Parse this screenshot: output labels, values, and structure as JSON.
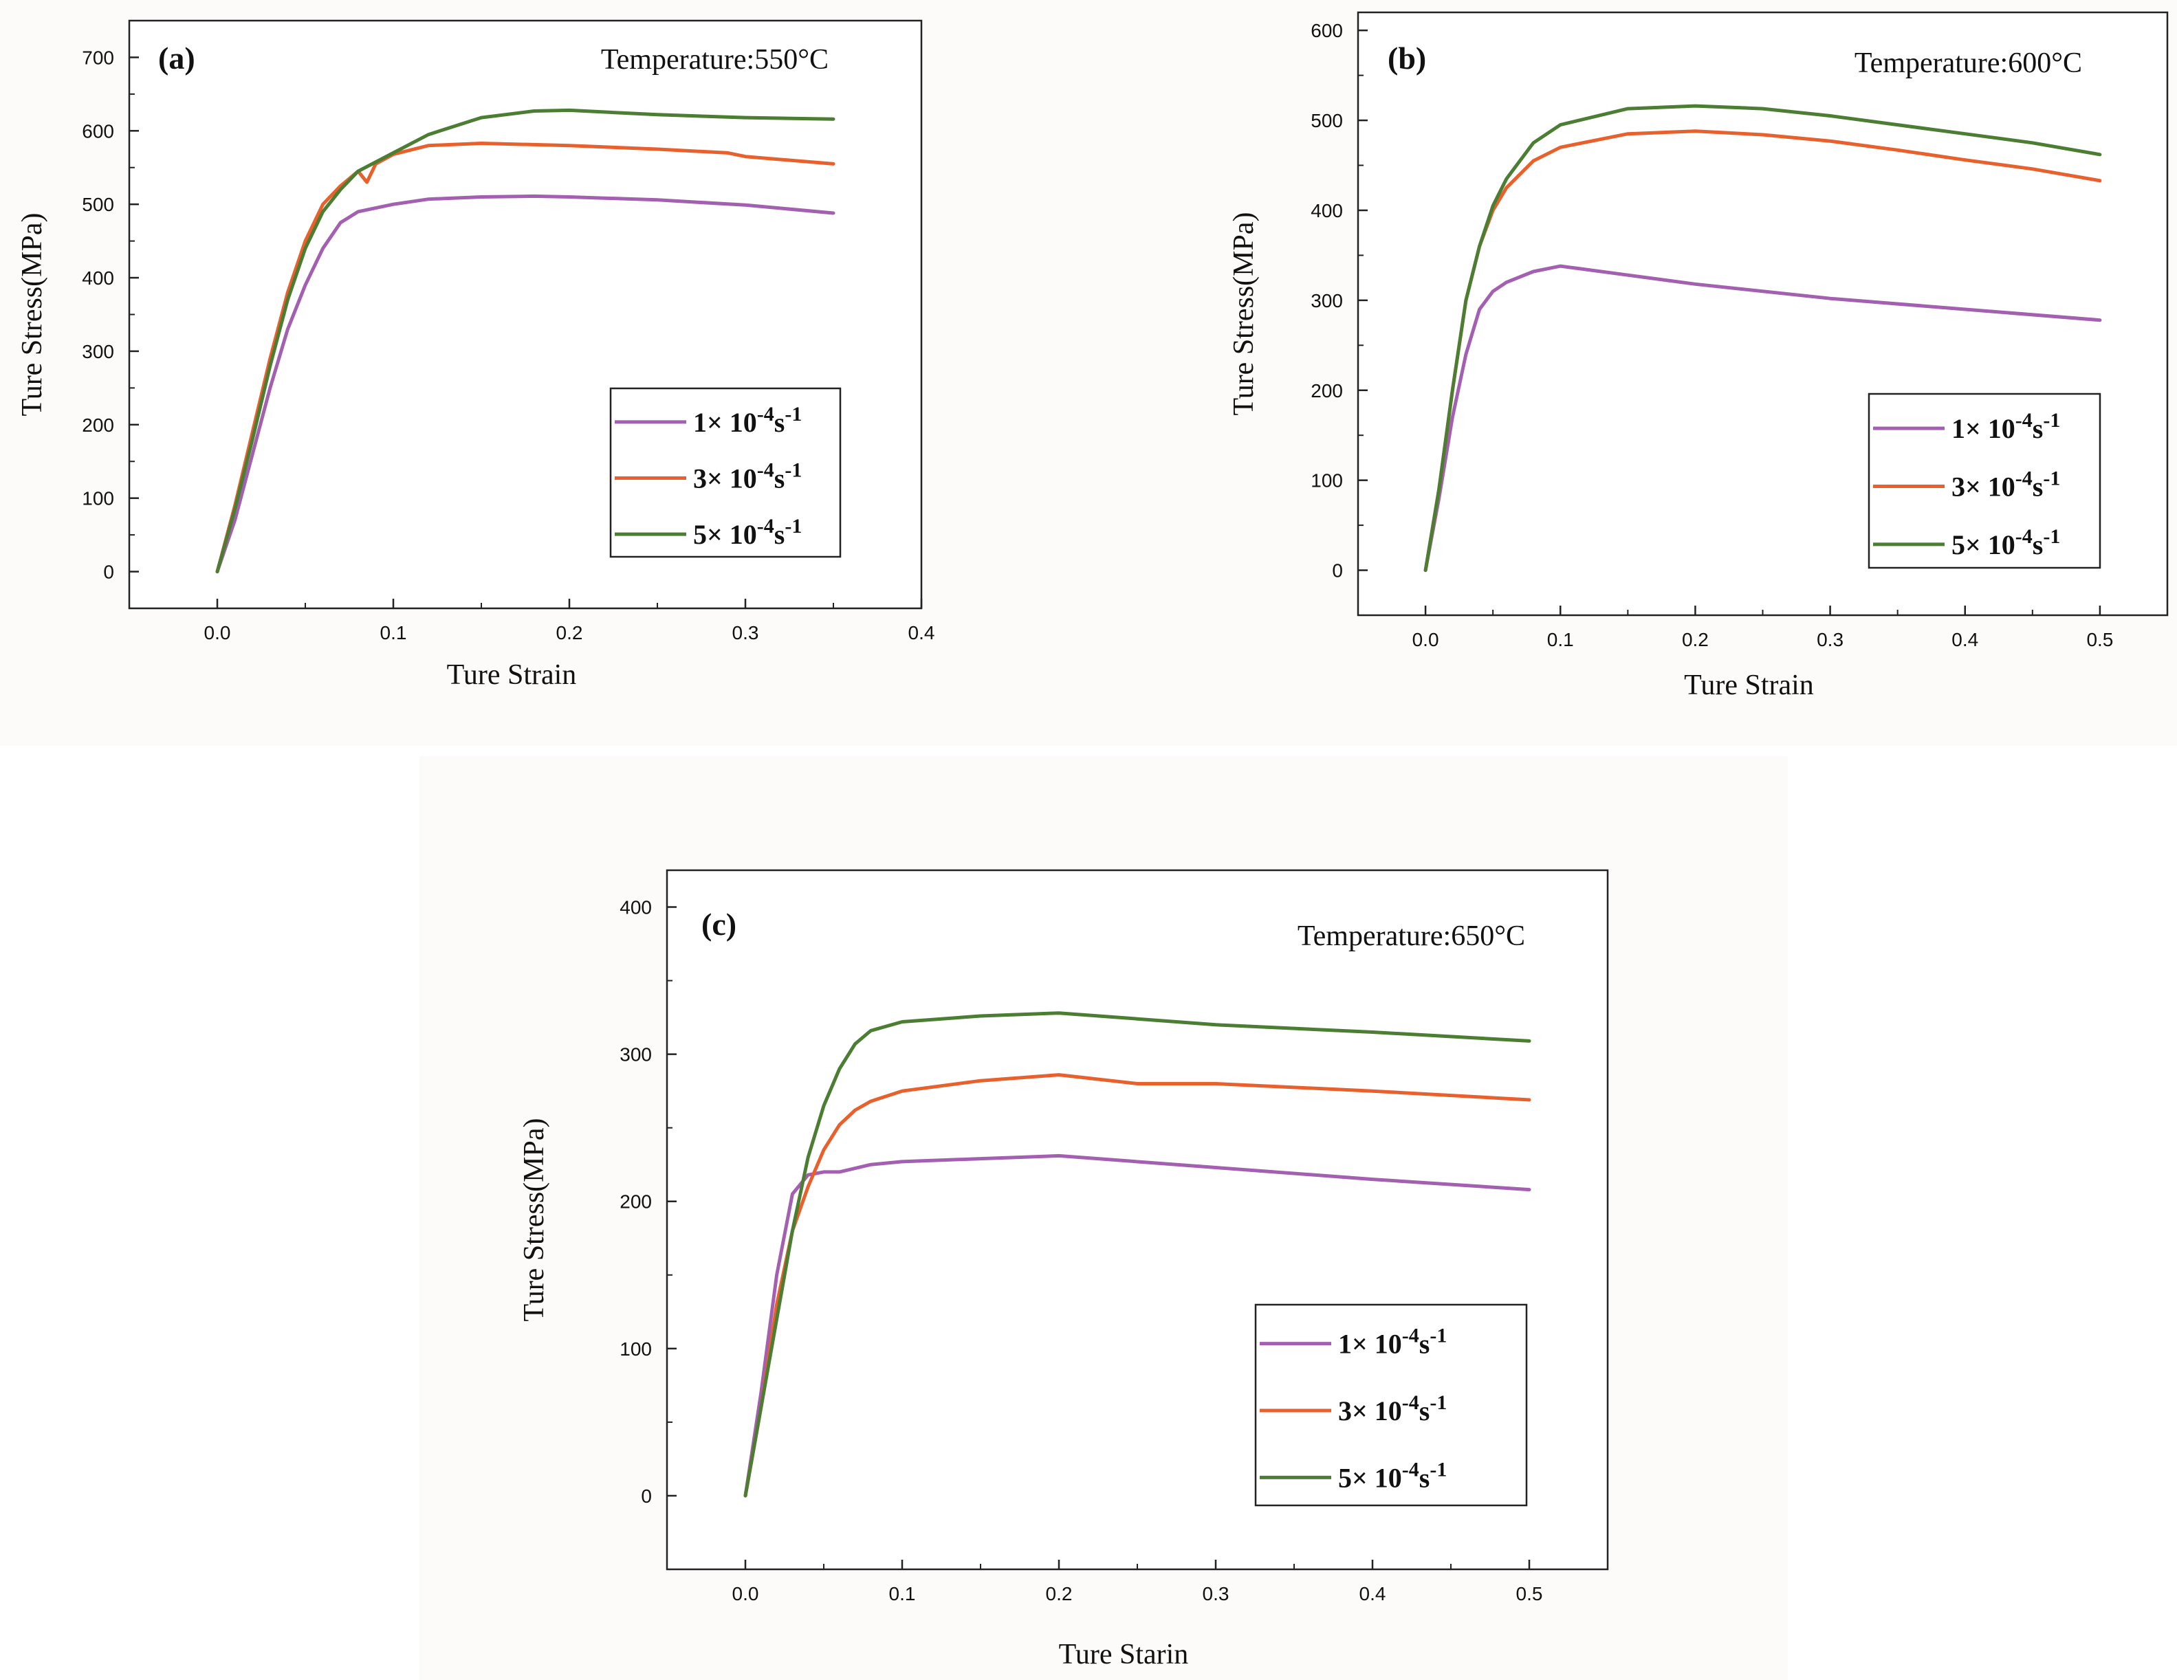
{
  "chart_data": [
    {
      "type": "line",
      "panel_label": "(a)",
      "annotation": "Temperature:550°C",
      "xlabel": "Ture Strain",
      "ylabel": "Ture Stress(MPa)",
      "xlim": [
        -0.05,
        0.4
      ],
      "ylim": [
        -50,
        750
      ],
      "xticks": [
        0.0,
        0.1,
        0.2,
        0.3,
        0.4
      ],
      "xtick_labels": [
        "0.0",
        "0.1",
        "0.2",
        "0.3",
        "0.4"
      ],
      "yticks": [
        0,
        100,
        200,
        300,
        400,
        500,
        600,
        700
      ],
      "ytick_labels": [
        "0",
        "100",
        "200",
        "300",
        "400",
        "500",
        "600",
        "700"
      ],
      "legend_position": "center-right",
      "series": [
        {
          "name": "1× 10-4s-1",
          "label_prefix": "1× 10",
          "label_exp": "-4",
          "label_unit": "s",
          "label_unit_exp": "-1",
          "color": "#a35fb0",
          "x": [
            0,
            0.01,
            0.02,
            0.03,
            0.04,
            0.05,
            0.06,
            0.07,
            0.08,
            0.1,
            0.12,
            0.15,
            0.18,
            0.2,
            0.25,
            0.3,
            0.35
          ],
          "y": [
            0,
            70,
            160,
            250,
            330,
            390,
            440,
            475,
            490,
            500,
            507,
            510,
            511,
            510,
            506,
            499,
            488
          ]
        },
        {
          "name": "3× 10-4s-1",
          "label_prefix": "3× 10",
          "label_exp": "-4",
          "label_unit": "s",
          "label_unit_exp": "-1",
          "color": "#e8612c",
          "x": [
            0,
            0.01,
            0.02,
            0.03,
            0.04,
            0.05,
            0.06,
            0.07,
            0.08,
            0.085,
            0.09,
            0.1,
            0.12,
            0.15,
            0.2,
            0.25,
            0.29,
            0.3,
            0.35
          ],
          "y": [
            0,
            90,
            190,
            290,
            380,
            450,
            500,
            525,
            545,
            530,
            555,
            568,
            580,
            583,
            580,
            575,
            570,
            565,
            555
          ]
        },
        {
          "name": "5× 10-4s-1",
          "label_prefix": "5× 10",
          "label_exp": "-4",
          "label_unit": "s",
          "label_unit_exp": "-1",
          "color": "#4b7d32",
          "x": [
            0,
            0.01,
            0.02,
            0.03,
            0.04,
            0.05,
            0.06,
            0.07,
            0.08,
            0.1,
            0.12,
            0.15,
            0.18,
            0.2,
            0.25,
            0.3,
            0.35
          ],
          "y": [
            0,
            85,
            180,
            280,
            370,
            440,
            490,
            520,
            545,
            570,
            595,
            618,
            627,
            628,
            622,
            618,
            616
          ]
        }
      ]
    },
    {
      "type": "line",
      "panel_label": "(b)",
      "annotation": "Temperature:600°C",
      "xlabel": "Ture Strain",
      "ylabel": "Ture Stress(MPa)",
      "xlim": [
        -0.05,
        0.55
      ],
      "ylim": [
        -50,
        620
      ],
      "xticks": [
        0.0,
        0.1,
        0.2,
        0.3,
        0.4,
        0.5
      ],
      "xtick_labels": [
        "0.0",
        "0.1",
        "0.2",
        "0.3",
        "0.4",
        "0.5"
      ],
      "yticks": [
        0,
        100,
        200,
        300,
        400,
        500,
        600
      ],
      "ytick_labels": [
        "0",
        "100",
        "200",
        "300",
        "400",
        "500",
        "600"
      ],
      "legend_position": "lower-right",
      "series": [
        {
          "name": "1× 10-4s-1",
          "label_prefix": "1× 10",
          "label_exp": "-4",
          "label_unit": "s",
          "label_unit_exp": "-1",
          "color": "#a35fb0",
          "x": [
            0,
            0.01,
            0.02,
            0.03,
            0.04,
            0.05,
            0.06,
            0.08,
            0.1,
            0.15,
            0.2,
            0.3,
            0.4,
            0.5
          ],
          "y": [
            0,
            80,
            170,
            240,
            290,
            310,
            320,
            332,
            338,
            328,
            318,
            302,
            290,
            278
          ]
        },
        {
          "name": "3× 10-4s-1",
          "label_prefix": "3× 10",
          "label_exp": "-4",
          "label_unit": "s",
          "label_unit_exp": "-1",
          "color": "#e8612c",
          "x": [
            0,
            0.01,
            0.02,
            0.03,
            0.04,
            0.05,
            0.06,
            0.08,
            0.1,
            0.15,
            0.2,
            0.25,
            0.3,
            0.35,
            0.4,
            0.45,
            0.5
          ],
          "y": [
            0,
            90,
            200,
            300,
            360,
            400,
            425,
            455,
            470,
            485,
            488,
            484,
            477,
            467,
            456,
            446,
            433
          ]
        },
        {
          "name": "5× 10-4s-1",
          "label_prefix": "5× 10",
          "label_exp": "-4",
          "label_unit": "s",
          "label_unit_exp": "-1",
          "color": "#4b7d32",
          "x": [
            0,
            0.01,
            0.02,
            0.03,
            0.04,
            0.05,
            0.06,
            0.08,
            0.1,
            0.15,
            0.2,
            0.25,
            0.3,
            0.35,
            0.4,
            0.45,
            0.5
          ],
          "y": [
            0,
            90,
            200,
            300,
            360,
            405,
            435,
            475,
            495,
            513,
            516,
            513,
            505,
            495,
            485,
            475,
            462
          ]
        }
      ]
    },
    {
      "type": "line",
      "panel_label": "(c)",
      "annotation": "Temperature:650°C",
      "xlabel": "Ture Starin",
      "ylabel": "Ture Stress(MPa)",
      "xlim": [
        -0.05,
        0.55
      ],
      "ylim": [
        -50,
        425
      ],
      "xticks": [
        0.0,
        0.1,
        0.2,
        0.3,
        0.4,
        0.5
      ],
      "xtick_labels": [
        "0.0",
        "0.1",
        "0.2",
        "0.3",
        "0.4",
        "0.5"
      ],
      "yticks": [
        0,
        100,
        200,
        300,
        400
      ],
      "ytick_labels": [
        "0",
        "100",
        "200",
        "300",
        "400"
      ],
      "legend_position": "lower-right",
      "series": [
        {
          "name": "1× 10-4s-1",
          "label_prefix": "1× 10",
          "label_exp": "-4",
          "label_unit": "s",
          "label_unit_exp": "-1",
          "color": "#a35fb0",
          "x": [
            0,
            0.01,
            0.02,
            0.03,
            0.04,
            0.05,
            0.06,
            0.08,
            0.1,
            0.15,
            0.2,
            0.3,
            0.4,
            0.5
          ],
          "y": [
            0,
            70,
            150,
            205,
            218,
            220,
            220,
            225,
            227,
            229,
            231,
            223,
            215,
            208
          ]
        },
        {
          "name": "3× 10-4s-1",
          "label_prefix": "3× 10",
          "label_exp": "-4",
          "label_unit": "s",
          "label_unit_exp": "-1",
          "color": "#e8612c",
          "x": [
            0,
            0.01,
            0.02,
            0.03,
            0.04,
            0.05,
            0.06,
            0.07,
            0.08,
            0.1,
            0.15,
            0.2,
            0.25,
            0.3,
            0.4,
            0.5
          ],
          "y": [
            0,
            60,
            130,
            180,
            210,
            235,
            252,
            262,
            268,
            275,
            282,
            286,
            280,
            280,
            275,
            269
          ]
        },
        {
          "name": "5× 10-4s-1",
          "label_prefix": "5× 10",
          "label_exp": "-4",
          "label_unit": "s",
          "label_unit_exp": "-1",
          "color": "#4b7d32",
          "x": [
            0,
            0.01,
            0.02,
            0.03,
            0.04,
            0.05,
            0.06,
            0.07,
            0.08,
            0.1,
            0.15,
            0.2,
            0.25,
            0.3,
            0.4,
            0.5
          ],
          "y": [
            0,
            60,
            120,
            180,
            230,
            265,
            290,
            307,
            316,
            322,
            326,
            328,
            324,
            320,
            315,
            309
          ]
        }
      ]
    }
  ]
}
